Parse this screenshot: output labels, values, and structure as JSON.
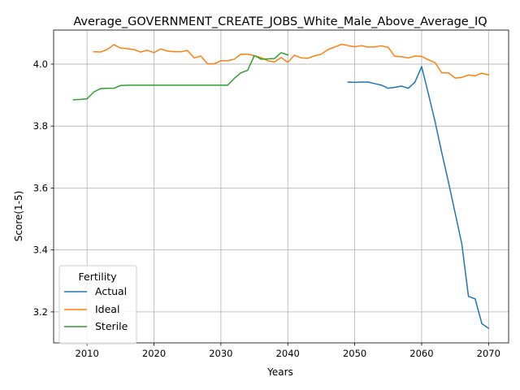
{
  "chart_data": {
    "type": "line",
    "title": "Average_GOVERNMENT_CREATE_JOBS_White_Male_Above_Average_IQ",
    "xlabel": "Years",
    "ylabel": "Score(1-5)",
    "xlim": [
      2005,
      2073
    ],
    "ylim": [
      3.1,
      4.11
    ],
    "xticks": [
      2010,
      2020,
      2030,
      2040,
      2050,
      2060,
      2070
    ],
    "yticks": [
      3.2,
      3.4,
      3.6,
      3.8,
      4.0
    ],
    "xtick_labels": [
      "2010",
      "2020",
      "2030",
      "2040",
      "2050",
      "2060",
      "2070"
    ],
    "ytick_labels": [
      "3.2",
      "3.4",
      "3.6",
      "3.8",
      "4.0"
    ],
    "grid": true,
    "legend": {
      "title": "Fertility",
      "placement": "lower-left"
    },
    "series": [
      {
        "name": "Actual",
        "color": "#1f77b4",
        "x": [
          2049,
          2050,
          2051,
          2052,
          2053,
          2054,
          2055,
          2056,
          2057,
          2058,
          2059,
          2060,
          2061,
          2062,
          2063,
          2064,
          2065,
          2066,
          2067,
          2068,
          2069,
          2070
        ],
        "y": [
          3.942,
          3.941,
          3.942,
          3.942,
          3.937,
          3.932,
          3.922,
          3.925,
          3.929,
          3.922,
          3.942,
          3.992,
          3.905,
          3.815,
          3.715,
          3.62,
          3.52,
          3.42,
          3.25,
          3.242,
          3.162,
          3.147
        ]
      },
      {
        "name": "Ideal",
        "color": "#ff7f0e",
        "x": [
          2011,
          2012,
          2013,
          2014,
          2015,
          2016,
          2017,
          2018,
          2019,
          2020,
          2021,
          2022,
          2023,
          2024,
          2025,
          2026,
          2027,
          2028,
          2029,
          2030,
          2031,
          2032,
          2033,
          2034,
          2035,
          2036,
          2037,
          2038,
          2039,
          2040,
          2041,
          2042,
          2043,
          2044,
          2045,
          2046,
          2047,
          2048,
          2049,
          2050,
          2051,
          2052,
          2053,
          2054,
          2055,
          2056,
          2057,
          2058,
          2059,
          2060,
          2061,
          2062,
          2063,
          2064,
          2065,
          2066,
          2067,
          2068,
          2069,
          2070
        ],
        "y": [
          4.04,
          4.039,
          4.047,
          4.063,
          4.052,
          4.05,
          4.047,
          4.039,
          4.045,
          4.037,
          4.049,
          4.042,
          4.04,
          4.04,
          4.044,
          4.02,
          4.026,
          4.001,
          4.001,
          4.011,
          4.011,
          4.016,
          4.032,
          4.032,
          4.027,
          4.021,
          4.011,
          4.007,
          4.021,
          4.006,
          4.029,
          4.02,
          4.019,
          4.027,
          4.032,
          4.047,
          4.055,
          4.064,
          4.06,
          4.056,
          4.06,
          4.055,
          4.056,
          4.059,
          4.054,
          4.025,
          4.024,
          4.02,
          4.026,
          4.025,
          4.014,
          4.005,
          3.972,
          3.972,
          3.955,
          3.957,
          3.965,
          3.962,
          3.971,
          3.965
        ]
      },
      {
        "name": "Sterile",
        "color": "#2ca02c",
        "x": [
          2008,
          2009,
          2010,
          2011,
          2012,
          2013,
          2014,
          2015,
          2016,
          2017,
          2018,
          2019,
          2020,
          2021,
          2022,
          2023,
          2024,
          2025,
          2026,
          2027,
          2028,
          2029,
          2030,
          2031,
          2032,
          2033,
          2034,
          2035,
          2036,
          2037,
          2038,
          2039,
          2040
        ],
        "y": [
          3.885,
          3.886,
          3.888,
          3.91,
          3.921,
          3.922,
          3.922,
          3.931,
          3.932,
          3.932,
          3.932,
          3.932,
          3.932,
          3.932,
          3.932,
          3.932,
          3.932,
          3.932,
          3.932,
          3.932,
          3.932,
          3.932,
          3.932,
          3.932,
          3.954,
          3.972,
          3.98,
          4.028,
          4.016,
          4.017,
          4.018,
          4.037,
          4.03
        ]
      }
    ]
  }
}
